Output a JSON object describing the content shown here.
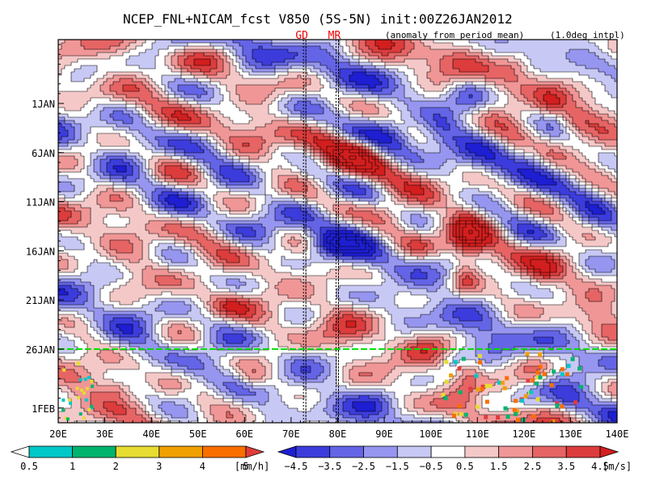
{
  "chart_data": {
    "type": "heatmap",
    "title": "NCEP_FNL+NICAM_fcst V850 (5S-5N) init:00Z26JAN2012",
    "subtitle_left": "(anomaly from period mean)",
    "subtitle_right": "(1.0deg intpl)",
    "x_ticks": [
      "20E",
      "30E",
      "40E",
      "50E",
      "60E",
      "70E",
      "80E",
      "90E",
      "100E",
      "110E",
      "120E",
      "130E",
      "140E"
    ],
    "x_range": [
      20,
      140
    ],
    "y_ticks": [
      "1JAN",
      "6JAN",
      "11JAN",
      "16JAN",
      "21JAN",
      "26JAN",
      "1FEB"
    ],
    "y_tick_days": [
      1,
      6,
      11,
      16,
      21,
      26,
      32
    ],
    "y_range_days": [
      -5.5,
      33.5
    ],
    "init_day": 26,
    "init_line_color": "#00dd00",
    "marker_lines": [
      {
        "label": "GD",
        "lon": 73
      },
      {
        "label": "MR",
        "lon": 80
      }
    ],
    "marker_line_color": "#ee0000",
    "precip_colorbar": {
      "unit": "[mm/h]",
      "tick_labels": [
        "0.5",
        "1",
        "2",
        "3",
        "4",
        "5"
      ],
      "colors": [
        "#ffffff",
        "#00c8c8",
        "#00b46e",
        "#e6dc32",
        "#f0a000",
        "#fa6e00",
        "#e03c3c"
      ]
    },
    "wind_colorbar": {
      "unit": "[m/s]",
      "tick_labels": [
        "−4.5",
        "−3.5",
        "−2.5",
        "−1.5",
        "−0.5",
        "0.5",
        "1.5",
        "2.5",
        "3.5",
        "4.5"
      ],
      "colors": [
        "#1e1ed2",
        "#3c3cdc",
        "#6464e6",
        "#9696f0",
        "#c8c8f5",
        "#ffffff",
        "#f5c8c8",
        "#f09696",
        "#e66464",
        "#dc3c3c",
        "#d21e1e"
      ]
    }
  }
}
